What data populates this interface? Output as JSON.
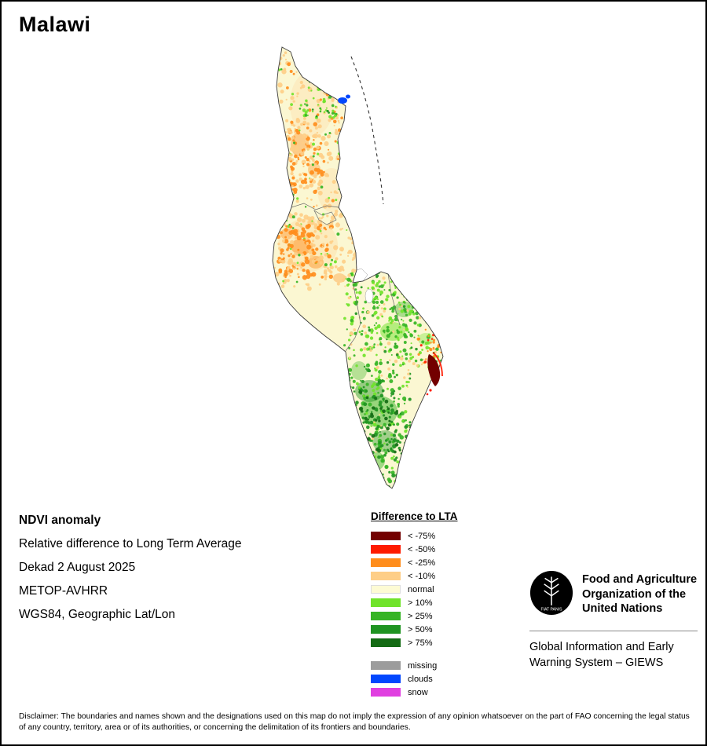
{
  "page": {
    "title": "Malawi"
  },
  "map": {
    "country": "Malawi",
    "base_color": "#FBF7D2",
    "outline_color": "#3a3a3a",
    "lake_boundary_style": "dashed"
  },
  "info": {
    "heading": "NDVI anomaly",
    "lines": [
      "Relative difference to Long Term Average",
      "Dekad 2 August 2025",
      "METOP-AVHRR",
      "WGS84, Geographic Lat/Lon"
    ]
  },
  "legend": {
    "title": "Difference to LTA",
    "items": [
      {
        "label": "< -75%",
        "color": "#730000"
      },
      {
        "label": "< -50%",
        "color": "#FE1B00"
      },
      {
        "label": "< -25%",
        "color": "#FF8D1C"
      },
      {
        "label": "< -10%",
        "color": "#FECE87"
      },
      {
        "label": "normal",
        "color": "#FDFBD4"
      },
      {
        "label": "> 10%",
        "color": "#70E32A"
      },
      {
        "label": "> 25%",
        "color": "#36B425"
      },
      {
        "label": "> 50%",
        "color": "#1F9421"
      },
      {
        "label": "> 75%",
        "color": "#146B14"
      }
    ],
    "extra_items": [
      {
        "label": "missing",
        "color": "#9C9C9C"
      },
      {
        "label": "clouds",
        "color": "#0247FE"
      },
      {
        "label": "snow",
        "color": "#E03FE0"
      }
    ]
  },
  "footer": {
    "fao_logo_text": "FAO",
    "fao_motto": "FIAT PANIS",
    "fao_name_lines": [
      "Food and Agriculture",
      "Organization of the",
      "United Nations"
    ],
    "giews_lines": [
      "Global Information and Early",
      "Warning System – GIEWS"
    ]
  },
  "disclaimer": "Disclaimer: The boundaries and names shown and the designations used on this map do not imply the expression of any opinion whatsoever on the part of FAO concerning the legal status of any country, territory, area or of its authorities, or concerning the delimitation of its frontiers and boundaries."
}
